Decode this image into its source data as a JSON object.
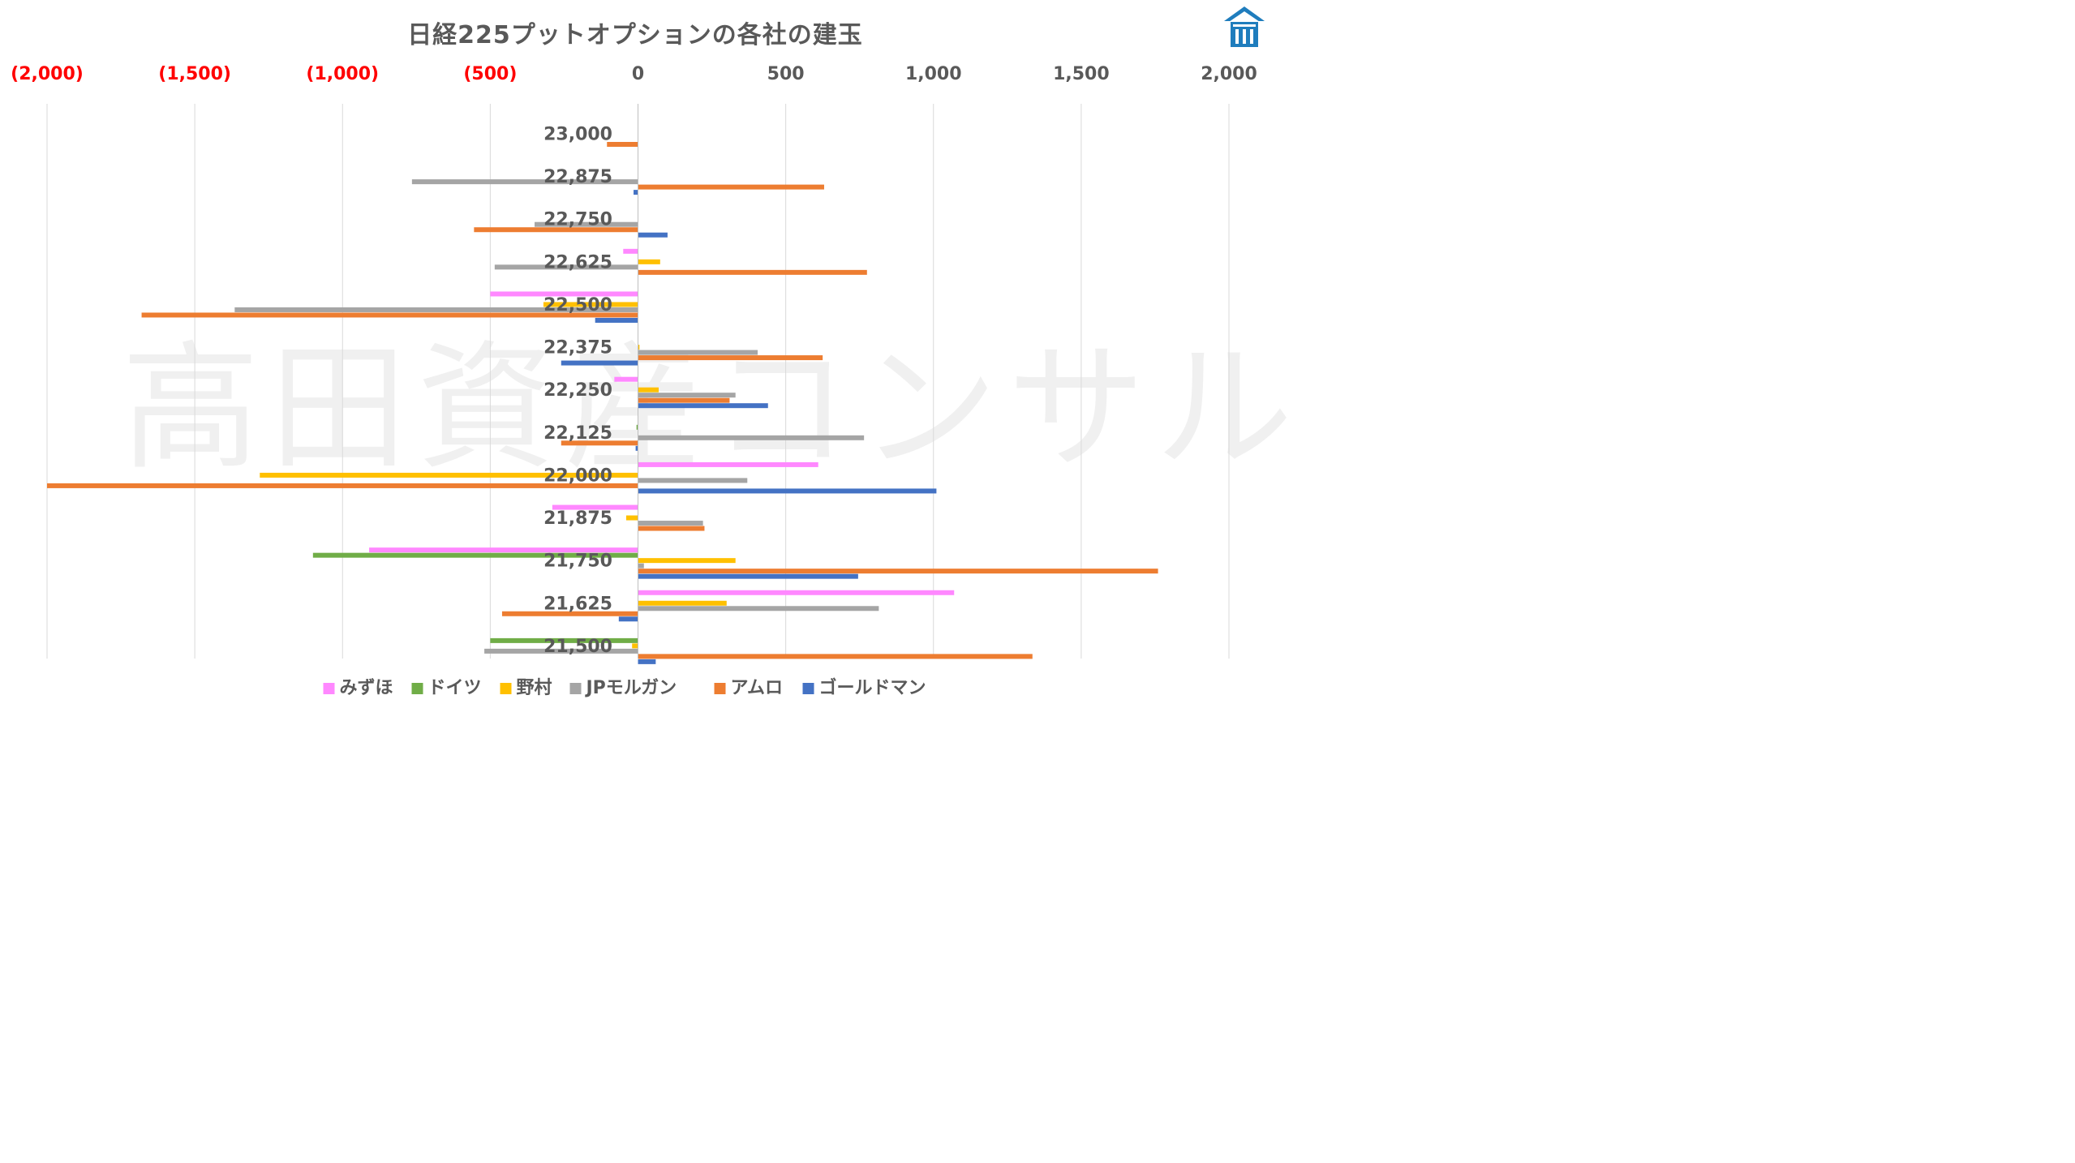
{
  "chart_data": {
    "type": "bar",
    "orientation": "horizontal",
    "title": "日経225プットオプションの各社の建玉",
    "categories": [
      "23,000",
      "22,875",
      "22,750",
      "22,625",
      "22,500",
      "22,375",
      "22,250",
      "22,125",
      "22,000",
      "21,875",
      "21,750",
      "21,625",
      "21,500"
    ],
    "xlim": [
      -2000,
      2000
    ],
    "x_ticks": [
      -2000,
      -1500,
      -1000,
      -500,
      0,
      500,
      1000,
      1500,
      2000
    ],
    "x_tick_labels": [
      "(2,000)",
      "(1,500)",
      "(1,000)",
      "(500)",
      "0",
      "500",
      "1,000",
      "1,500",
      "2,000"
    ],
    "negative_tick_color": "#ff0000",
    "grid": "vertical",
    "legend_position": "bottom",
    "series": [
      {
        "name": "みずほ",
        "color": "#ff88ff",
        "values": [
          0,
          0,
          0,
          -50,
          -500,
          0,
          -80,
          0,
          610,
          -290,
          -910,
          1070,
          0
        ]
      },
      {
        "name": "ドイツ",
        "color": "#70ad47",
        "values": [
          0,
          0,
          0,
          0,
          0,
          0,
          0,
          -5,
          0,
          0,
          -1100,
          0,
          -500
        ]
      },
      {
        "name": "野村",
        "color": "#ffc000",
        "values": [
          0,
          0,
          0,
          75,
          -320,
          5,
          70,
          0,
          -1280,
          -40,
          330,
          300,
          -20
        ]
      },
      {
        "name": "JPモルガン",
        "color": "#a5a5a5",
        "values": [
          0,
          -765,
          -350,
          -485,
          -1365,
          405,
          330,
          765,
          370,
          220,
          20,
          815,
          -520
        ]
      },
      {
        "name": "アムロ",
        "color": "#ed7d31",
        "values": [
          -105,
          630,
          -555,
          775,
          -1680,
          625,
          310,
          -260,
          -2000,
          225,
          1760,
          -460,
          1335
        ]
      },
      {
        "name": "ゴールドマン",
        "color": "#4472c4",
        "values": [
          0,
          -15,
          100,
          0,
          -145,
          -260,
          440,
          -8,
          1010,
          0,
          745,
          -65,
          60
        ]
      }
    ]
  },
  "watermark": "高田資産コンサル",
  "logo_icon": "house-logo-icon"
}
